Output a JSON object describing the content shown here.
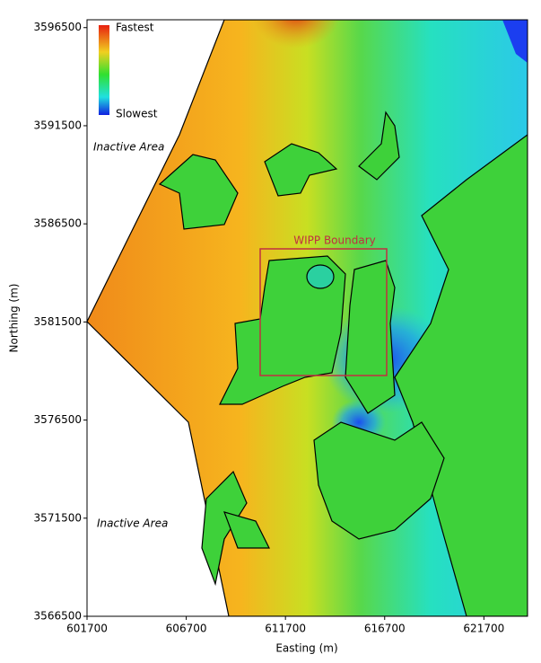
{
  "chart_data": {
    "type": "map",
    "x_label": "Easting (m)",
    "y_label": "Northing (m)",
    "xlim": [
      601700,
      623900
    ],
    "ylim": [
      3566500,
      3596900
    ],
    "xticks": [
      601700,
      606700,
      611700,
      616700,
      621700
    ],
    "yticks": [
      3566500,
      3571500,
      3576500,
      3581500,
      3586500,
      3591500,
      3596500
    ],
    "legend": {
      "top": "Fastest",
      "bottom": "Slowest"
    },
    "annotations": {
      "inactive_top": "Inactive Area",
      "inactive_bottom": "Inactive Area",
      "wipp": "WIPP Boundary"
    }
  }
}
